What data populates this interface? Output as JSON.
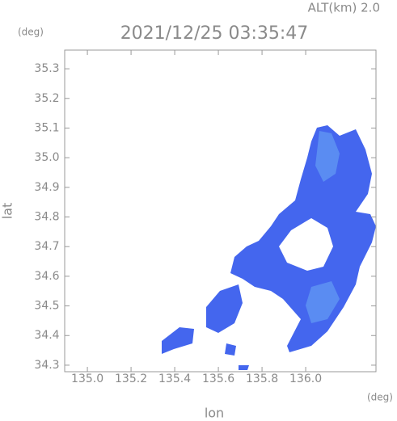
{
  "chart_data": {
    "type": "radar-map",
    "header": "ALT(km)  2.0",
    "title": "2021/12/25 03:35:47",
    "y_unit": "(deg)",
    "x_unit": "(deg)",
    "xlabel": "lon",
    "ylabel": "lat",
    "xlim": [
      134.896,
      136.322
    ],
    "ylim": [
      34.278,
      35.363
    ],
    "xticks": [
      {
        "value": 135,
        "label": "135.0"
      },
      135.2,
      135.4,
      135.6,
      135.8,
      {
        "value": 136,
        "label": "136.0"
      }
    ],
    "yticks": [
      35.3,
      35.2,
      35.1,
      {
        "value": 35,
        "label": "35.0"
      },
      34.9,
      34.8,
      34.7,
      34.6,
      34.5,
      34.4,
      34.3
    ]
  }
}
